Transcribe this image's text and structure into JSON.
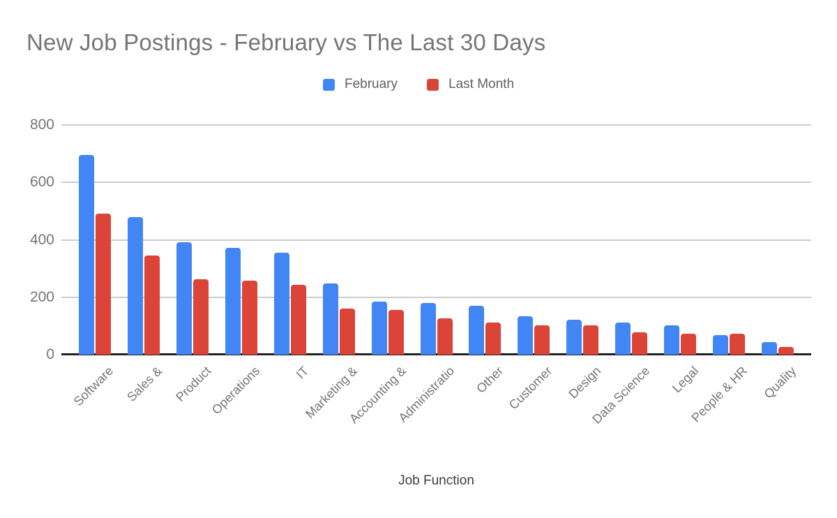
{
  "chart_data": {
    "type": "bar",
    "title": "New Job Postings - February vs The Last 30 Days",
    "xlabel": "Job Function",
    "ylabel": "",
    "ylim": [
      0,
      800
    ],
    "yticks": [
      0,
      200,
      400,
      600,
      800
    ],
    "grid": true,
    "legend_position": "top-center",
    "categories": [
      "Software",
      "Sales &",
      "Product",
      "Operations",
      "IT",
      "Marketing &",
      "Accounting &",
      "Administratio",
      "Other",
      "Customer",
      "Design",
      "Data Science",
      "Legal",
      "People & HR",
      "Quality"
    ],
    "series": [
      {
        "name": "February",
        "color": "#4285F4",
        "values": [
          695,
          480,
          392,
          373,
          354,
          248,
          186,
          181,
          170,
          133,
          122,
          113,
          102,
          68,
          43
        ]
      },
      {
        "name": "Last Month",
        "color": "#DB4437",
        "values": [
          490,
          345,
          262,
          257,
          243,
          161,
          156,
          127,
          112,
          102,
          102,
          78,
          73,
          74,
          27
        ]
      }
    ]
  },
  "colors": {
    "title_text": "#757575",
    "axis_tick_text": "#757575",
    "axis_title_text": "#3d3d3d",
    "gridline": "#cccccc",
    "baseline": "#212121",
    "background": "#ffffff"
  }
}
